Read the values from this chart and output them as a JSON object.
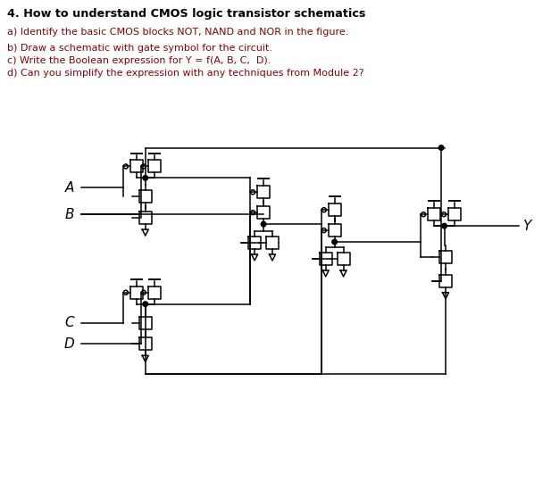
{
  "title": "4. How to understand CMOS logic transistor schematics",
  "title_color": "#000000",
  "questions": [
    {
      "text": "a) Identify the basic CMOS blocks NOT, NAND and NOR in the figure.",
      "color": "#8B0000"
    },
    {
      "text": "b) Draw a schematic with gate symbol for the circuit.",
      "color": "#8B0000"
    },
    {
      "text": "c) Write the Boolean expression for Y = f(A, B, C,  D).",
      "color": "#8B0000"
    },
    {
      "text": "d) Can you simplify the expression with any techniques from Module 2?",
      "color": "#8B0000"
    }
  ],
  "bg_color": "#ffffff",
  "line_color": "#000000",
  "figsize": [
    6.17,
    5.49
  ],
  "dpi": 100
}
